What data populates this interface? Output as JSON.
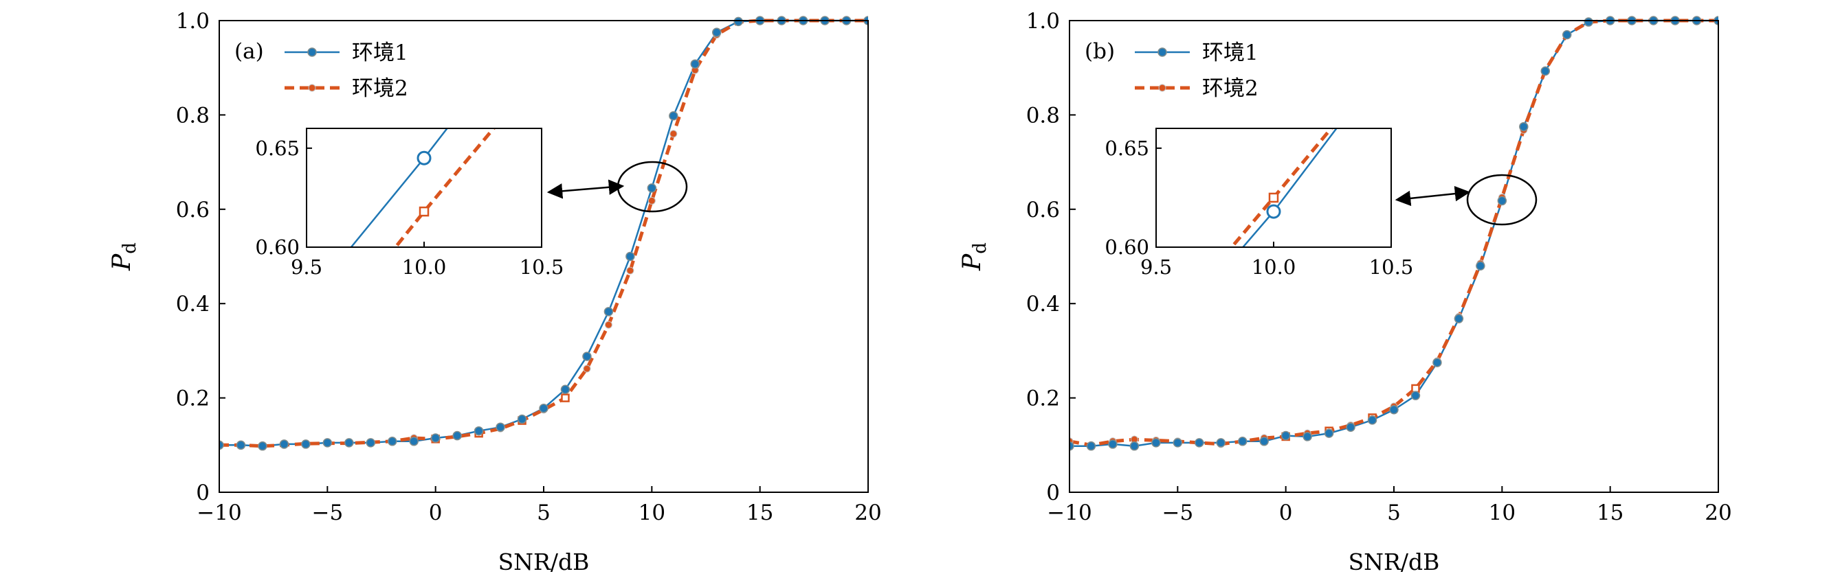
{
  "colors": {
    "env1": "#1f77b4",
    "env2": "#d9541e",
    "axis": "#000000"
  },
  "chart_data": [
    {
      "type": "line",
      "panel_label": "(a)",
      "xlabel": "SNR/dB",
      "ylabel_main": "P",
      "ylabel_sub": "d",
      "xlim": [
        -10,
        20
      ],
      "ylim": [
        0,
        1
      ],
      "xticks": [
        -10,
        -5,
        0,
        5,
        10,
        15,
        20
      ],
      "xtick_labels": [
        "−10",
        "−5",
        "0",
        "5",
        "10",
        "15",
        "20"
      ],
      "yticks": [
        0,
        0.2,
        0.4,
        0.6,
        0.8,
        1.0
      ],
      "ytick_labels": [
        "0",
        "0.2",
        "0.4",
        "0.6",
        "0.8",
        "1.0"
      ],
      "legend_position": "top-left",
      "x": [
        -10,
        -9,
        -8,
        -7,
        -6,
        -5,
        -4,
        -3,
        -2,
        -1,
        0,
        1,
        2,
        3,
        4,
        5,
        6,
        7,
        8,
        9,
        10,
        11,
        12,
        13,
        14,
        15,
        16,
        17,
        18,
        19,
        20
      ],
      "series": [
        {
          "name": "环境1",
          "style": "solid",
          "values": [
            0.1,
            0.1,
            0.098,
            0.102,
            0.102,
            0.105,
            0.105,
            0.105,
            0.108,
            0.108,
            0.115,
            0.12,
            0.13,
            0.138,
            0.155,
            0.178,
            0.218,
            0.288,
            0.383,
            0.5,
            0.645,
            0.798,
            0.908,
            0.975,
            0.998,
            1.0,
            1.0,
            1.0,
            1.0,
            1.0,
            1.0
          ]
        },
        {
          "name": "环境2",
          "style": "dashed",
          "values": [
            0.1,
            0.1,
            0.098,
            0.1,
            0.103,
            0.104,
            0.104,
            0.106,
            0.108,
            0.115,
            0.113,
            0.118,
            0.125,
            0.135,
            0.152,
            0.175,
            0.2,
            0.262,
            0.355,
            0.47,
            0.618,
            0.76,
            0.895,
            0.97,
            0.997,
            1.0,
            1.0,
            1.0,
            1.0,
            1.0,
            1.0
          ]
        }
      ],
      "inset": {
        "xlim": [
          9.5,
          10.5
        ],
        "ylim": [
          0.6,
          0.66
        ],
        "xticks": [
          9.5,
          10.0,
          10.5
        ],
        "xtick_labels": [
          "9.5",
          "10.0",
          "10.5"
        ],
        "yticks": [
          0.6,
          0.65
        ],
        "ytick_labels": [
          "0.60",
          "0.65"
        ]
      }
    },
    {
      "type": "line",
      "panel_label": "(b)",
      "xlabel": "SNR/dB",
      "ylabel_main": "P",
      "ylabel_sub": "d",
      "xlim": [
        -10,
        20
      ],
      "ylim": [
        0,
        1
      ],
      "xticks": [
        -10,
        -5,
        0,
        5,
        10,
        15,
        20
      ],
      "xtick_labels": [
        "−10",
        "−5",
        "0",
        "5",
        "10",
        "15",
        "20"
      ],
      "yticks": [
        0,
        0.2,
        0.4,
        0.6,
        0.8,
        1.0
      ],
      "ytick_labels": [
        "0",
        "0.2",
        "0.4",
        "0.6",
        "0.8",
        "1.0"
      ],
      "legend_position": "top-left",
      "x": [
        -10,
        -9,
        -8,
        -7,
        -6,
        -5,
        -4,
        -3,
        -2,
        -1,
        0,
        1,
        2,
        3,
        4,
        5,
        6,
        7,
        8,
        9,
        10,
        11,
        12,
        13,
        14,
        15,
        16,
        17,
        18,
        19,
        20
      ],
      "series": [
        {
          "name": "环境1",
          "style": "solid",
          "values": [
            0.098,
            0.098,
            0.102,
            0.098,
            0.105,
            0.105,
            0.105,
            0.105,
            0.108,
            0.108,
            0.12,
            0.118,
            0.125,
            0.138,
            0.153,
            0.175,
            0.205,
            0.275,
            0.368,
            0.48,
            0.618,
            0.775,
            0.893,
            0.97,
            0.997,
            1.0,
            1.0,
            1.0,
            1.0,
            1.0,
            1.0
          ]
        },
        {
          "name": "环境2",
          "style": "dashed",
          "values": [
            0.108,
            0.1,
            0.108,
            0.112,
            0.11,
            0.108,
            0.105,
            0.102,
            0.108,
            0.115,
            0.118,
            0.125,
            0.13,
            0.142,
            0.158,
            0.182,
            0.22,
            0.278,
            0.372,
            0.485,
            0.625,
            0.768,
            0.895,
            0.97,
            0.997,
            1.0,
            1.0,
            1.0,
            1.0,
            1.0,
            1.0
          ]
        }
      ],
      "inset": {
        "xlim": [
          9.5,
          10.5
        ],
        "ylim": [
          0.6,
          0.66
        ],
        "xticks": [
          9.5,
          10.0,
          10.5
        ],
        "xtick_labels": [
          "9.5",
          "10.0",
          "10.5"
        ],
        "yticks": [
          0.6,
          0.65
        ],
        "ytick_labels": [
          "0.60",
          "0.65"
        ]
      }
    }
  ]
}
